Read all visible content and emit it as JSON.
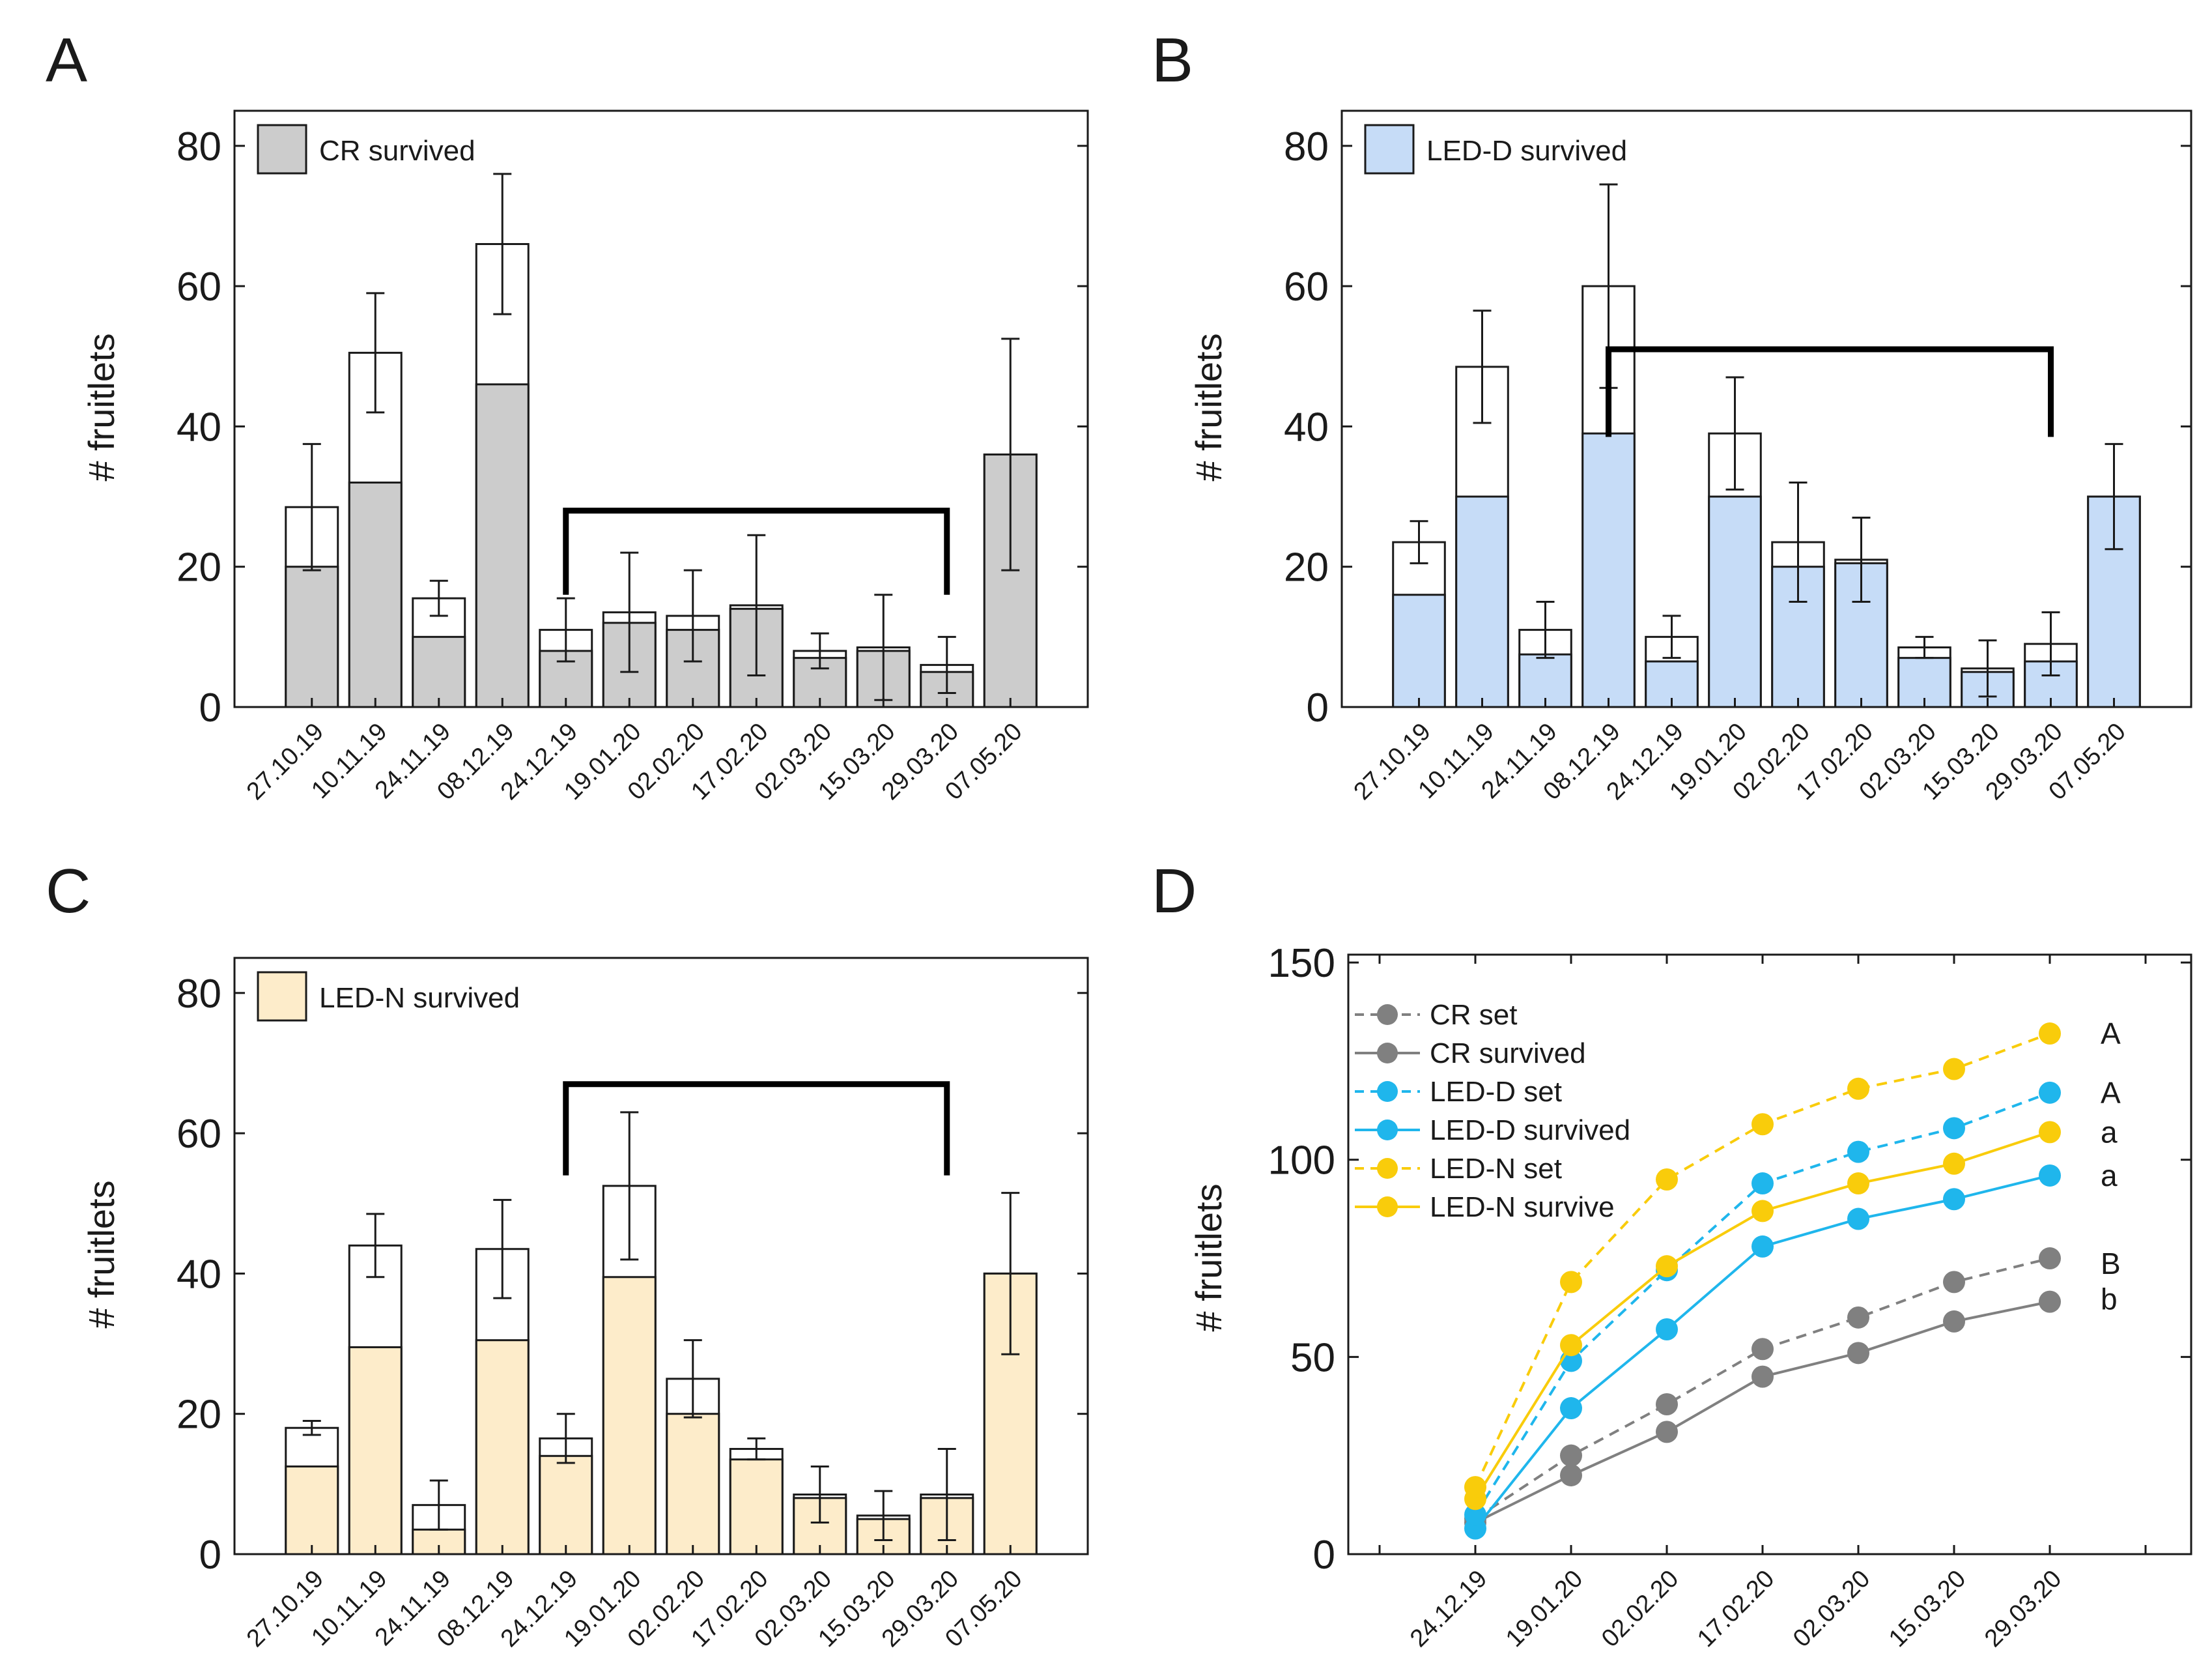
{
  "colors": {
    "cr": "#cccccc",
    "led_d": "#c6dcf7",
    "led_n": "#fdecca",
    "cr_line": "#808080",
    "led_d_line": "#1fb6ec",
    "led_n_line": "#f9cc0b",
    "axis": "#1a1a1a",
    "bracket": "#000000"
  },
  "chart_data": [
    {
      "panel": "A",
      "type": "bar",
      "stacked": true,
      "ylabel": "# fruitlets",
      "ylim": [
        0,
        85
      ],
      "yticks": [
        0,
        20,
        40,
        60,
        80
      ],
      "categories": [
        "27.10.19",
        "10.11.19",
        "24.11.19",
        "08.12.19",
        "24.12.19",
        "19.01.20",
        "02.02.20",
        "17.02.20",
        "02.03.20",
        "15.03.20",
        "29.03.20",
        "07.05.20"
      ],
      "legend": "CR survived",
      "color_key": "cr",
      "survived": [
        20,
        32,
        10,
        46,
        8,
        12,
        11,
        14,
        7,
        8,
        5,
        36
      ],
      "set": [
        28.5,
        50.5,
        15.5,
        66,
        11,
        13.5,
        13,
        14.5,
        8,
        8.5,
        6,
        36
      ],
      "error": [
        9,
        8.5,
        2.5,
        10,
        4.5,
        8.5,
        6.5,
        10,
        2.5,
        7.5,
        4,
        16.5
      ],
      "bracket": {
        "from": "24.12.19",
        "to": "29.03.20",
        "y": 28,
        "drop": 16
      }
    },
    {
      "panel": "B",
      "type": "bar",
      "stacked": true,
      "ylabel": "# fruitlets",
      "ylim": [
        0,
        85
      ],
      "yticks": [
        0,
        20,
        40,
        60,
        80
      ],
      "categories": [
        "27.10.19",
        "10.11.19",
        "24.11.19",
        "08.12.19",
        "24.12.19",
        "19.01.20",
        "02.02.20",
        "17.02.20",
        "02.03.20",
        "15.03.20",
        "29.03.20",
        "07.05.20"
      ],
      "legend": "LED-D survived",
      "color_key": "led_d",
      "survived": [
        16,
        30,
        7.5,
        39,
        6.5,
        30,
        20,
        20.5,
        7,
        5,
        6.5,
        30
      ],
      "set": [
        23.5,
        48.5,
        11,
        60,
        10,
        39,
        23.5,
        21,
        8.5,
        5.5,
        9,
        30
      ],
      "error": [
        3,
        8,
        4,
        14.5,
        3,
        8,
        8.5,
        6,
        1.5,
        4,
        4.5,
        7.5
      ],
      "bracket": {
        "from": "08.12.19",
        "to": "29.03.20",
        "y": 51,
        "drop": 38.5
      }
    },
    {
      "panel": "C",
      "type": "bar",
      "stacked": true,
      "ylabel": "# fruitlets",
      "ylim": [
        0,
        85
      ],
      "yticks": [
        0,
        20,
        40,
        60,
        80
      ],
      "categories": [
        "27.10.19",
        "10.11.19",
        "24.11.19",
        "08.12.19",
        "24.12.19",
        "19.01.20",
        "02.02.20",
        "17.02.20",
        "02.03.20",
        "15.03.20",
        "29.03.20",
        "07.05.20"
      ],
      "legend": "LED-N survived",
      "color_key": "led_n",
      "survived": [
        12.5,
        29.5,
        3.5,
        30.5,
        14,
        39.5,
        20,
        13.5,
        8,
        5,
        8,
        40
      ],
      "set": [
        18,
        44,
        7,
        43.5,
        16.5,
        52.5,
        25,
        15,
        8.5,
        5.5,
        8.5,
        40
      ],
      "error": [
        1,
        4.5,
        3.5,
        7,
        3.5,
        10.5,
        5.5,
        1.5,
        4,
        3.5,
        6.5,
        11.5
      ],
      "bracket": {
        "from": "24.12.19",
        "to": "29.03.20",
        "y": 67,
        "drop": 54
      }
    },
    {
      "panel": "D",
      "type": "line",
      "ylabel": "# fruitlets",
      "ylim": [
        0,
        152
      ],
      "yticks": [
        0,
        50,
        100,
        150
      ],
      "x": [
        "24.12.19",
        "19.01.20",
        "02.02.20",
        "17.02.20",
        "02.03.20",
        "15.03.20",
        "29.03.20"
      ],
      "series": [
        {
          "name": "CR set",
          "style": "dashed",
          "color_key": "cr_line",
          "values": [
            9,
            25,
            38,
            52,
            60,
            69,
            75
          ],
          "significance": "B"
        },
        {
          "name": "CR survived",
          "style": "solid",
          "color_key": "cr_line",
          "values": [
            8,
            20,
            31,
            45,
            51,
            59,
            64
          ],
          "significance": "b"
        },
        {
          "name": "LED-D set",
          "style": "dashed",
          "color_key": "led_d_line",
          "values": [
            10,
            49,
            72,
            94,
            102,
            108,
            117
          ],
          "significance": "A"
        },
        {
          "name": "LED-D survived",
          "style": "solid",
          "color_key": "led_d_line",
          "values": [
            6.5,
            37,
            57,
            78,
            85,
            90,
            96
          ],
          "significance": "a"
        },
        {
          "name": "LED-N set",
          "style": "dashed",
          "color_key": "led_n_line",
          "values": [
            17,
            69,
            95,
            109,
            118,
            123,
            132
          ],
          "significance": "A"
        },
        {
          "name": "LED-N survive",
          "style": "solid",
          "color_key": "led_n_line",
          "values": [
            14,
            53,
            73,
            87,
            94,
            99,
            107
          ],
          "significance": "a"
        }
      ]
    }
  ]
}
